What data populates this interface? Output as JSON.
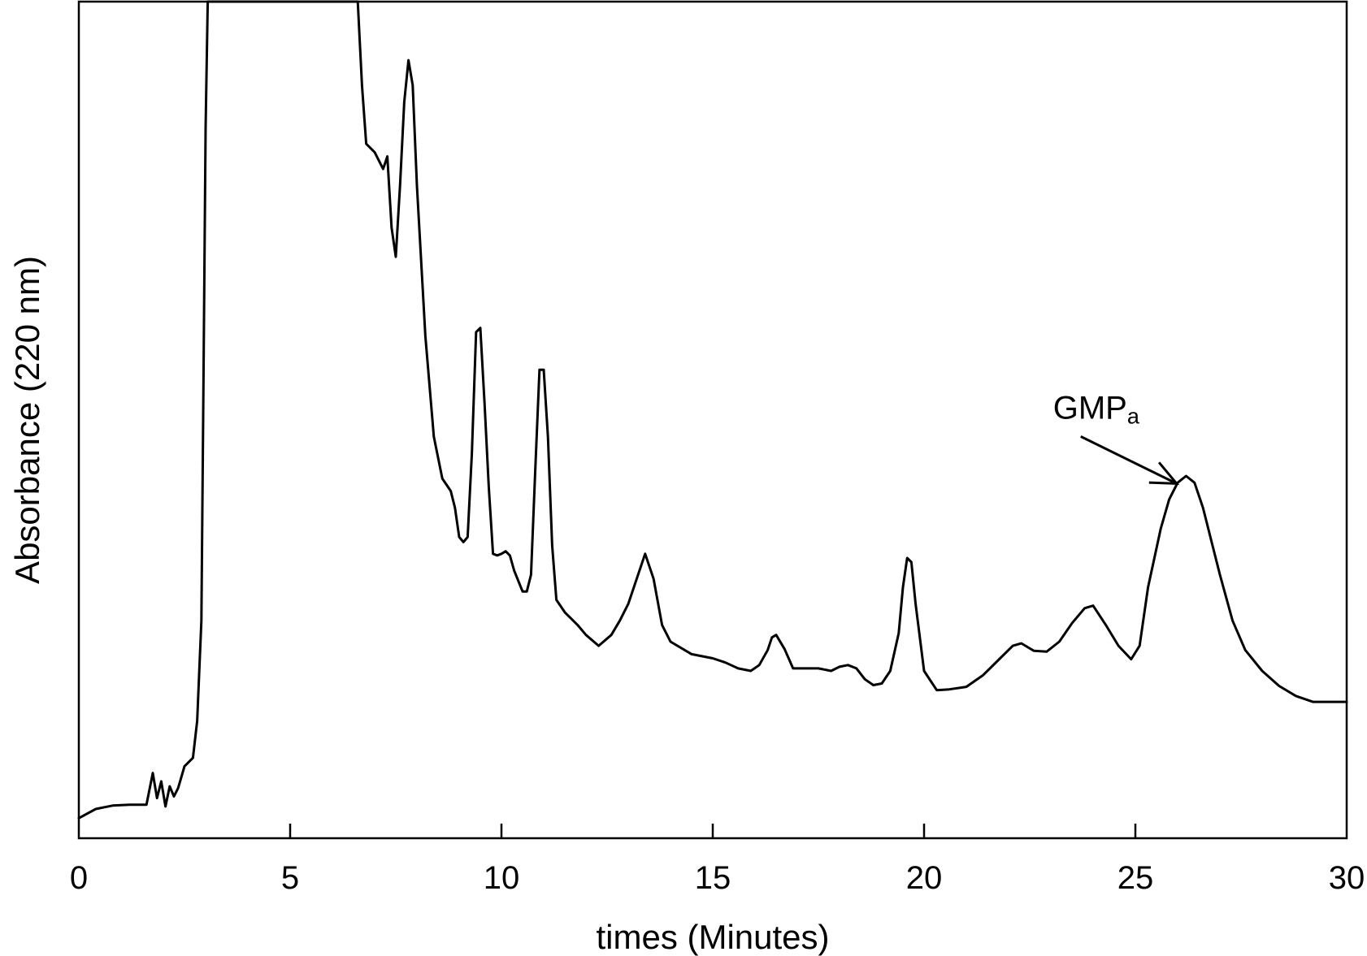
{
  "chart_data": {
    "type": "line",
    "title": "",
    "xlabel": "times (Minutes)",
    "ylabel": "Absorbance (220 nm)",
    "xlim": [
      0,
      30
    ],
    "ylim": [
      0,
      100
    ],
    "x_ticks": [
      "0",
      "5",
      "10",
      "15",
      "20",
      "25",
      "30"
    ],
    "grid": false,
    "legend": "none",
    "annotation": {
      "main": "GMP",
      "sub": "a",
      "x": 26.4,
      "y": 42
    },
    "series": [
      {
        "x": [
          0,
          0.4,
          0.8,
          1.2,
          1.6,
          1.75,
          1.85,
          1.95,
          2.05,
          2.15,
          2.25,
          2.35,
          2.5,
          2.7,
          2.8,
          2.9,
          2.95,
          3.0,
          3.05,
          3.1,
          6.6,
          6.7,
          6.8,
          7.0,
          7.2,
          7.3,
          7.4,
          7.5,
          7.6,
          7.7,
          7.8,
          7.9,
          8.0,
          8.2,
          8.4,
          8.6,
          8.8,
          8.9,
          9.0,
          9.1,
          9.2,
          9.3,
          9.4,
          9.5,
          9.6,
          9.7,
          9.8,
          9.9,
          10.0,
          10.1,
          10.2,
          10.3,
          10.5,
          10.6,
          10.7,
          10.8,
          10.9,
          11.0,
          11.1,
          11.2,
          11.3,
          11.5,
          11.8,
          12.0,
          12.3,
          12.6,
          12.8,
          13.0,
          13.2,
          13.4,
          13.6,
          13.8,
          14.0,
          14.5,
          15.0,
          15.3,
          15.6,
          15.9,
          16.1,
          16.3,
          16.4,
          16.5,
          16.7,
          16.9,
          17.2,
          17.5,
          17.8,
          18.0,
          18.2,
          18.4,
          18.6,
          18.8,
          19.0,
          19.2,
          19.4,
          19.5,
          19.6,
          19.7,
          19.8,
          20.0,
          20.3,
          20.6,
          21.0,
          21.4,
          21.8,
          22.1,
          22.3,
          22.6,
          22.9,
          23.2,
          23.5,
          23.8,
          24.0,
          24.3,
          24.6,
          24.9,
          25.1,
          25.3,
          25.6,
          25.8,
          26.0,
          26.2,
          26.4,
          26.6,
          26.8,
          27.0,
          27.3,
          27.6,
          28.0,
          28.4,
          28.8,
          29.2,
          29.6,
          30.0
        ],
        "y": [
          2.4,
          3.5,
          3.9,
          4.0,
          4.0,
          7.8,
          4.8,
          6.8,
          3.8,
          6.2,
          5.0,
          6.0,
          8.6,
          9.6,
          14.0,
          26.0,
          55.0,
          85.0,
          100.0,
          100.0,
          100.0,
          90.0,
          83.0,
          82.0,
          80.0,
          81.5,
          73.0,
          69.5,
          78.0,
          88.0,
          93.0,
          90.0,
          78.0,
          60.0,
          48.0,
          43.0,
          41.5,
          39.5,
          36.0,
          35.4,
          36.0,
          46.0,
          60.5,
          61.0,
          52.0,
          42.0,
          34.0,
          33.8,
          34.0,
          34.3,
          33.8,
          32.0,
          29.5,
          29.5,
          31.5,
          44.0,
          56.0,
          56.0,
          48.0,
          35.0,
          28.5,
          27.0,
          25.5,
          24.3,
          23.0,
          24.3,
          26.0,
          28.0,
          31.0,
          34.0,
          31.0,
          25.5,
          23.5,
          22.0,
          21.5,
          21.0,
          20.3,
          20.0,
          20.7,
          22.5,
          24.0,
          24.3,
          22.6,
          20.3,
          20.3,
          20.3,
          20.0,
          20.5,
          20.7,
          20.3,
          19.0,
          18.3,
          18.5,
          20.0,
          24.5,
          30.0,
          33.5,
          33.0,
          28.0,
          20.0,
          17.7,
          17.8,
          18.1,
          19.5,
          21.5,
          23.0,
          23.3,
          22.4,
          22.3,
          23.5,
          25.7,
          27.5,
          27.8,
          25.5,
          23.0,
          21.4,
          23.0,
          30.0,
          37.0,
          40.5,
          42.5,
          43.3,
          42.5,
          39.5,
          35.5,
          31.5,
          26.0,
          22.5,
          20.0,
          18.2,
          17.0,
          16.3,
          16.3,
          16.3
        ]
      }
    ]
  }
}
